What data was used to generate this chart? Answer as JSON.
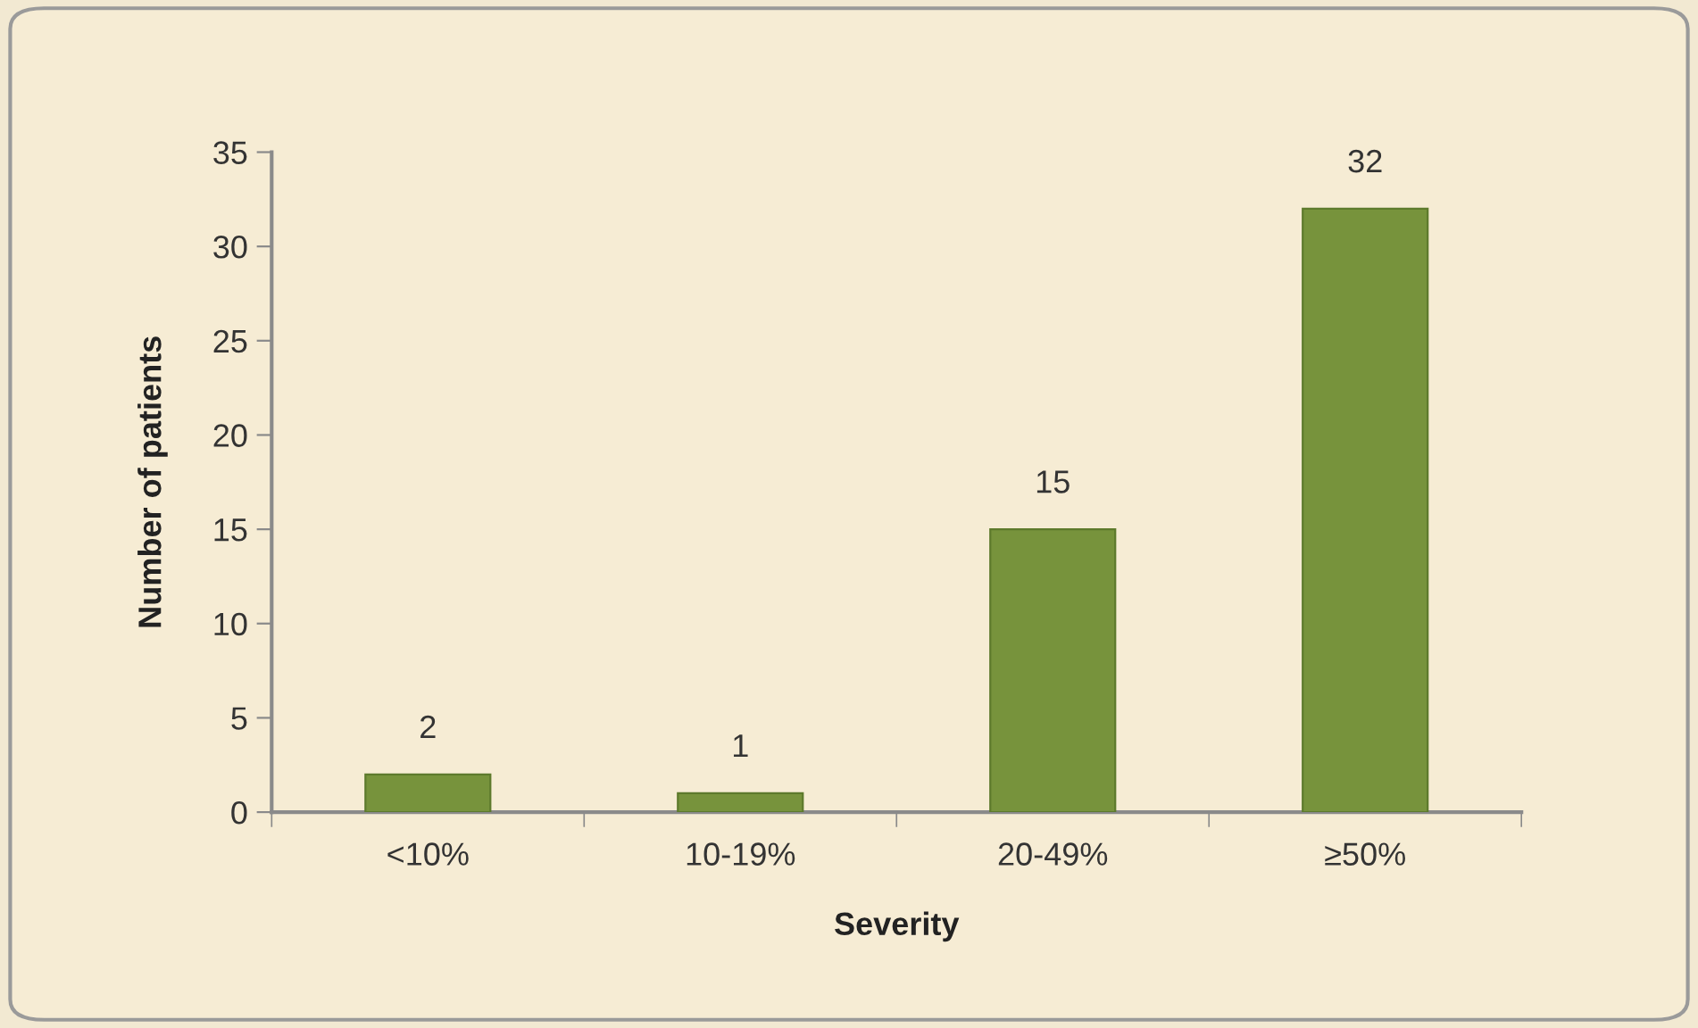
{
  "chart_data": {
    "type": "bar",
    "xlabel": "Severity",
    "ylabel": "Number of patients",
    "categories": [
      "<10%",
      "10-19%",
      "20-49%",
      "≥50%"
    ],
    "values": [
      2,
      1,
      15,
      32
    ],
    "color": "#77933c",
    "ylim": [
      0,
      35
    ],
    "yticks": [
      0,
      5,
      10,
      15,
      20,
      25,
      30,
      35
    ],
    "data_labels": true,
    "grid": false,
    "legend": false
  }
}
